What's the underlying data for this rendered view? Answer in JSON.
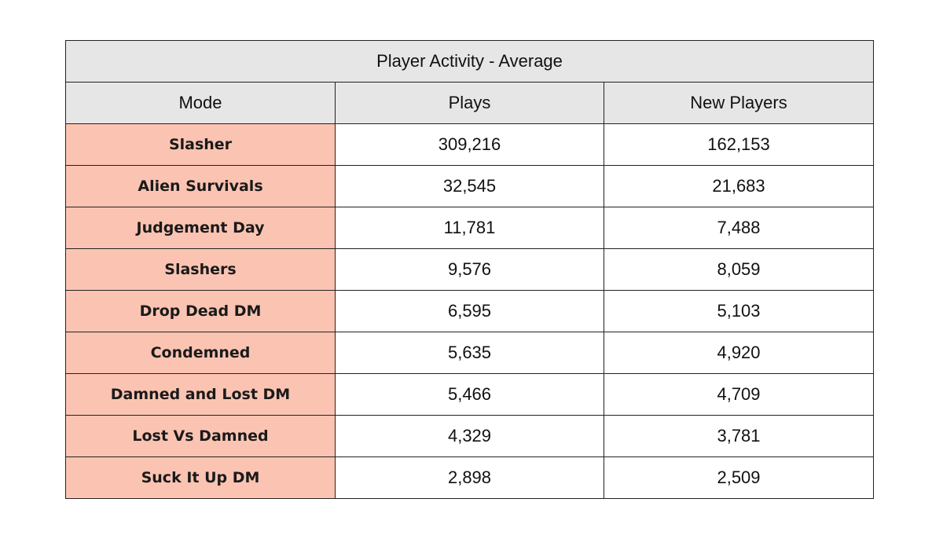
{
  "chart_data": {
    "type": "table",
    "title": "Player Activity - Average",
    "columns": [
      "Mode",
      "Plays",
      "New Players"
    ],
    "rows": [
      {
        "mode": "Slasher",
        "plays": "309,216",
        "new_players": "162,153"
      },
      {
        "mode": "Alien Survivals",
        "plays": "32,545",
        "new_players": "21,683"
      },
      {
        "mode": "Judgement Day",
        "plays": "11,781",
        "new_players": "7,488"
      },
      {
        "mode": "Slashers",
        "plays": "9,576",
        "new_players": "8,059"
      },
      {
        "mode": "Drop Dead DM",
        "plays": "6,595",
        "new_players": "5,103"
      },
      {
        "mode": "Condemned",
        "plays": "5,635",
        "new_players": "4,920"
      },
      {
        "mode": "Damned and Lost DM",
        "plays": "5,466",
        "new_players": "4,709"
      },
      {
        "mode": "Lost Vs Damned",
        "plays": "4,329",
        "new_players": "3,781"
      },
      {
        "mode": "Suck It Up DM",
        "plays": "2,898",
        "new_players": "2,509"
      }
    ]
  },
  "colors": {
    "header_bg": "#e6e6e6",
    "mode_bg": "#fbc4b2",
    "border": "#222222"
  }
}
